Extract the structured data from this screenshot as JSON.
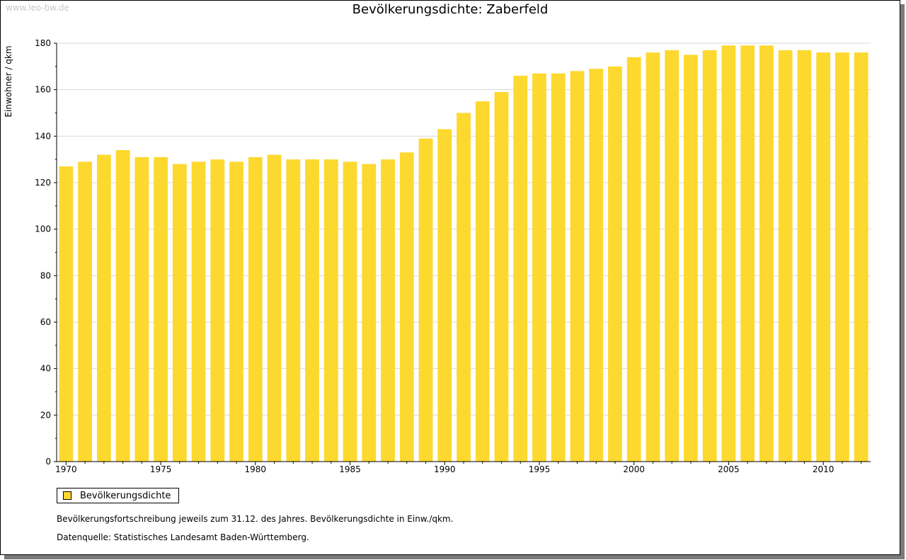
{
  "watermark": "www.leo-bw.de",
  "colors": {
    "bar": "#fdd82f",
    "grid": "#d9d9d9",
    "axis": "#000000"
  },
  "chart_data": {
    "type": "bar",
    "title": "Bevölkerungsdichte: Zaberfeld",
    "ylabel": "Einwohner / qkm",
    "xlabel": "",
    "ylim": [
      0,
      180
    ],
    "yticks": [
      0,
      20,
      40,
      60,
      80,
      100,
      120,
      140,
      160,
      180
    ],
    "xtick_labels": [
      "1970",
      "1975",
      "1980",
      "1985",
      "1990",
      "1995",
      "2000",
      "2005",
      "2010"
    ],
    "grid": true,
    "legend_position": "bottom-left",
    "categories": [
      "1970",
      "1971",
      "1972",
      "1973",
      "1974",
      "1975",
      "1976",
      "1977",
      "1978",
      "1979",
      "1980",
      "1981",
      "1982",
      "1983",
      "1984",
      "1985",
      "1986",
      "1987",
      "1988",
      "1989",
      "1990",
      "1991",
      "1992",
      "1993",
      "1994",
      "1995",
      "1996",
      "1997",
      "1998",
      "1999",
      "2000",
      "2001",
      "2002",
      "2003",
      "2004",
      "2005",
      "2006",
      "2007",
      "2008",
      "2009",
      "2010",
      "2011",
      "2012"
    ],
    "series": [
      {
        "name": "Bevölkerungsdichte",
        "values": [
          127,
          129,
          132,
          134,
          131,
          131,
          128,
          129,
          130,
          129,
          131,
          132,
          130,
          130,
          130,
          129,
          128,
          130,
          133,
          139,
          143,
          150,
          155,
          159,
          166,
          167,
          167,
          168,
          169,
          170,
          174,
          176,
          177,
          175,
          177,
          179,
          179,
          179,
          177,
          177,
          176,
          176,
          176
        ]
      }
    ]
  },
  "notes": {
    "line1": "Bevölkerungsfortschreibung jeweils zum 31.12. des Jahres. Bevölkerungsdichte in Einw./qkm.",
    "line2": "Datenquelle: Statistisches Landesamt Baden-Württemberg."
  }
}
